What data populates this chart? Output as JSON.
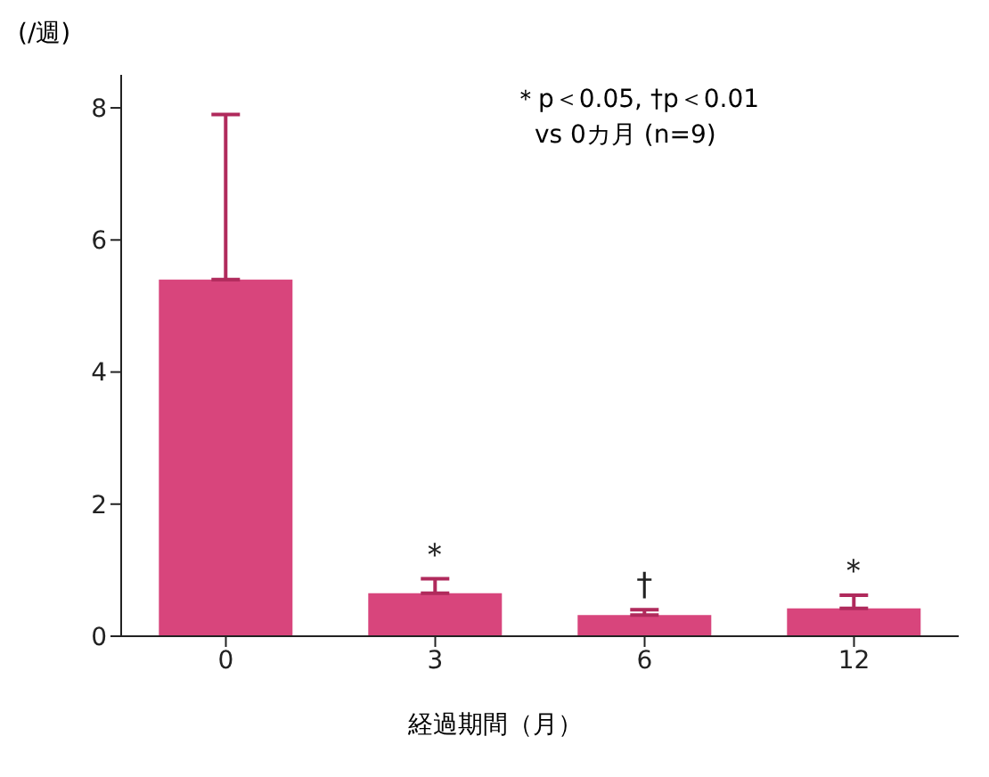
{
  "chart_data": {
    "type": "bar",
    "ylabel": "(/週)",
    "xlabel": "経過期間（月）",
    "categories": [
      "0",
      "3",
      "6",
      "12"
    ],
    "values": [
      5.4,
      0.65,
      0.32,
      0.42
    ],
    "errors": [
      [
        5.4,
        7.9
      ],
      [
        0.65,
        0.87
      ],
      [
        0.32,
        0.4
      ],
      [
        0.42,
        0.62
      ]
    ],
    "value_labels": [
      null,
      "＊",
      "†",
      "＊"
    ],
    "color": "#d8457c",
    "ylim": [
      0,
      8.5
    ],
    "yticks": [
      0,
      2,
      4,
      6,
      8
    ],
    "annotations": [
      "＊p＜0.05, †p＜0.01",
      "vs 0カ月 (n=9)"
    ]
  }
}
